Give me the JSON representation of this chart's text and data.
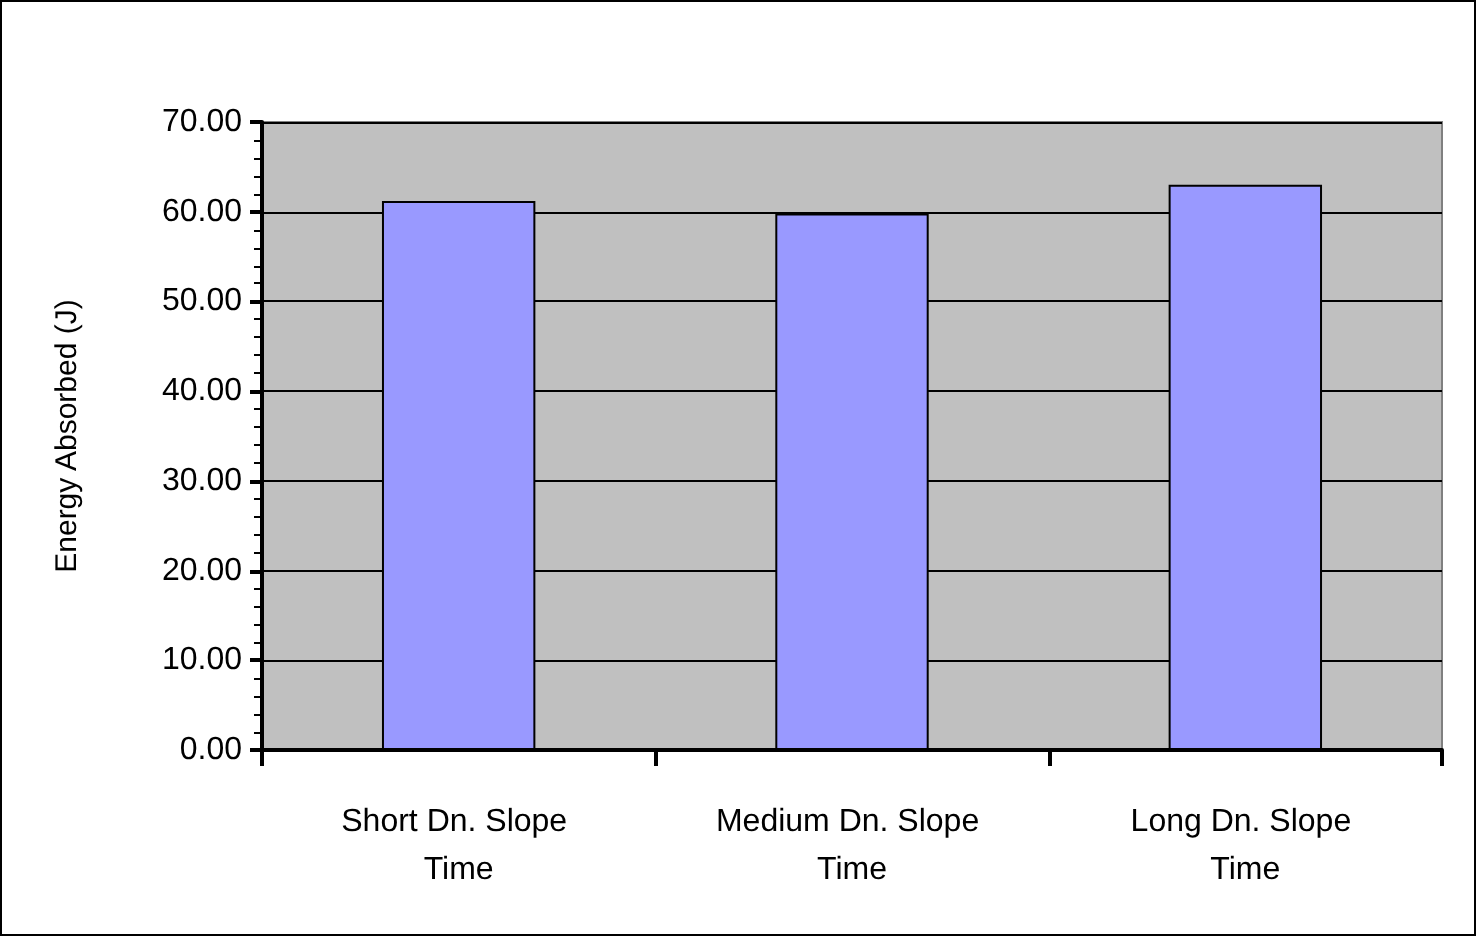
{
  "chart_data": {
    "type": "bar",
    "ylabel": "Energy Absorbed (J)",
    "categories": [
      "Short Dn. Slope Time",
      "Medium Dn. Slope Time",
      "Long Dn. Slope Time"
    ],
    "values": [
      61.2,
      59.8,
      63.0
    ],
    "color": "#9999ff",
    "ylim": [
      0,
      70
    ],
    "yticks": [
      {
        "value": 0,
        "label": "0.00"
      },
      {
        "value": 10,
        "label": "10.00"
      },
      {
        "value": 20,
        "label": "20.00"
      },
      {
        "value": 30,
        "label": "30.00"
      },
      {
        "value": 40,
        "label": "40.00"
      },
      {
        "value": 50,
        "label": "50.00"
      },
      {
        "value": 60,
        "label": "60.00"
      },
      {
        "value": 70,
        "label": "70.00"
      }
    ],
    "grid": "y"
  }
}
